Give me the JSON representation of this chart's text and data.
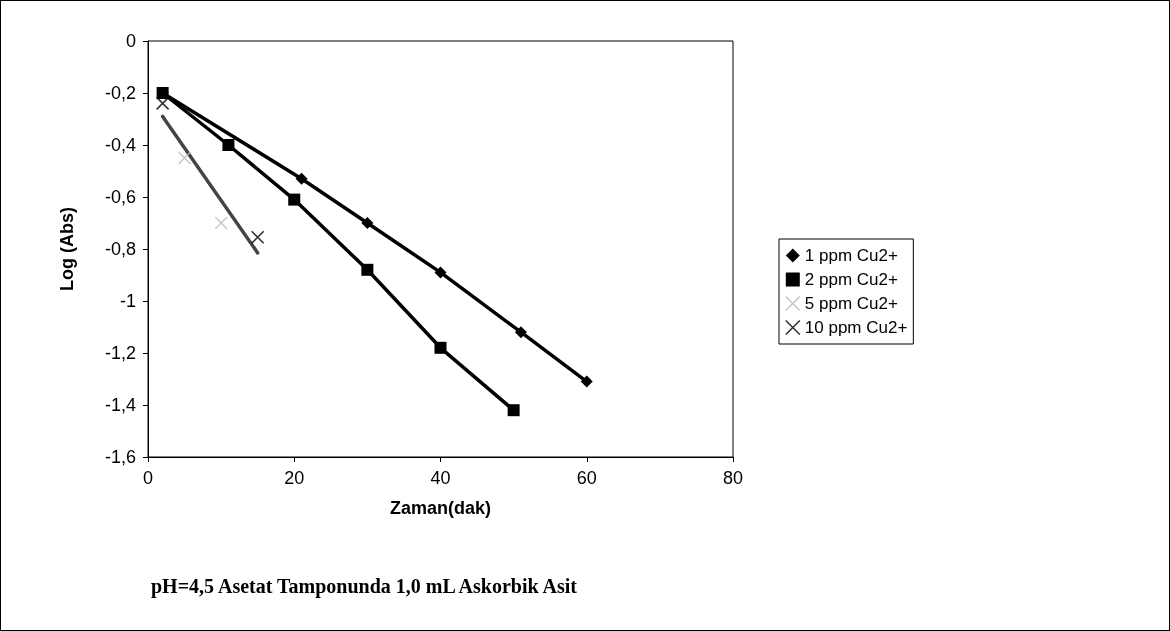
{
  "chart_data": {
    "type": "line",
    "title": "pH=4,5 Asetat Tamponunda 1,0 mL Askorbik Asit",
    "xlabel": "Zaman(dak)",
    "ylabel": "Log (Abs)",
    "xlim": [
      0,
      80
    ],
    "xticks": [
      0,
      20,
      40,
      60,
      80
    ],
    "ylim": [
      -1.6,
      0
    ],
    "yticks": [
      {
        "value": -1.6,
        "label": "-1,6"
      },
      {
        "value": -1.4,
        "label": "-1,4"
      },
      {
        "value": -1.2,
        "label": "-1,2"
      },
      {
        "value": -1,
        "label": "-1"
      },
      {
        "value": -0.8,
        "label": "-0,8"
      },
      {
        "value": -0.6,
        "label": "-0,6"
      },
      {
        "value": -0.4,
        "label": "-0,4"
      },
      {
        "value": -0.2,
        "label": "-0,2"
      },
      0
    ],
    "grid": false,
    "legend": "right",
    "line_style": "solid",
    "series": [
      {
        "name": "1 ppm Cu2+",
        "marker": "diamond",
        "color": "#000000",
        "x": [
          2,
          21,
          30,
          40,
          51,
          60
        ],
        "values": [
          -0.2,
          -0.53,
          -0.7,
          -0.89,
          -1.12,
          -1.31
        ]
      },
      {
        "name": "2 ppm Cu2+",
        "marker": "square",
        "color": "#000000",
        "x": [
          2,
          11,
          20,
          30,
          40,
          50
        ],
        "values": [
          -0.2,
          -0.4,
          -0.61,
          -0.88,
          -1.18,
          -1.42
        ]
      },
      {
        "name": "5 ppm Cu2+",
        "type": "scatter",
        "marker": "cross",
        "color": "#bbbbbb",
        "x": [
          5,
          10
        ],
        "values": [
          -0.45,
          -0.7
        ]
      },
      {
        "name": "10 ppm Cu2+",
        "type": "scatter",
        "marker": "cross",
        "color": "#000000",
        "x": [
          2,
          15
        ],
        "values": [
          -0.24,
          -0.755
        ]
      },
      {
        "marker": "none",
        "color": "#444444",
        "x": [
          2,
          15
        ],
        "values": [
          -0.29,
          -0.815
        ]
      }
    ]
  }
}
